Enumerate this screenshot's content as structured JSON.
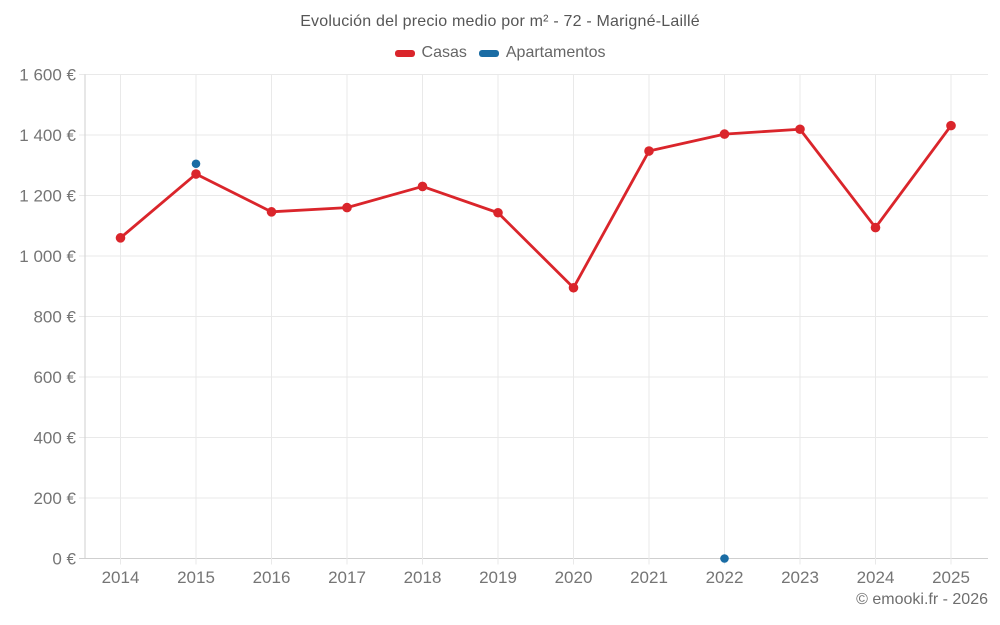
{
  "header": {
    "title": "Evolución del precio medio por m² - 72 - Marigné-Laillé"
  },
  "legend": {
    "items": [
      {
        "label": "Casas",
        "color": "#da252b"
      },
      {
        "label": "Apartamentos",
        "color": "#1a6ca4"
      }
    ]
  },
  "footer": {
    "credit": "© emooki.fr - 2026"
  },
  "chart_data": {
    "type": "line",
    "title": "Evolución del precio medio por m² - 72 - Marigné-Laillé",
    "x": [
      "2014",
      "2015",
      "2016",
      "2017",
      "2018",
      "2019",
      "2020",
      "2021",
      "2022",
      "2023",
      "2024",
      "2025"
    ],
    "series": [
      {
        "name": "Casas",
        "color": "#da252b",
        "line_width": 2.8,
        "marker_radius": 4.8,
        "values": [
          1060,
          1271,
          1146,
          1160,
          1230,
          1143,
          895,
          1347,
          1403,
          1419,
          1094,
          1431
        ]
      },
      {
        "name": "Apartamentos",
        "color": "#1a6ca4",
        "line_width": 0,
        "marker_radius": 4.3,
        "values": [
          null,
          1305,
          null,
          null,
          null,
          null,
          null,
          null,
          0,
          null,
          null,
          null
        ]
      }
    ],
    "ylim": [
      0,
      1600
    ],
    "yticks": [
      {
        "value": 0,
        "label": "0 €"
      },
      {
        "value": 200,
        "label": "200 €"
      },
      {
        "value": 400,
        "label": "400 €"
      },
      {
        "value": 600,
        "label": "600 €"
      },
      {
        "value": 800,
        "label": "800 €"
      },
      {
        "value": 1000,
        "label": "1 000 €"
      },
      {
        "value": 1200,
        "label": "1 200 €"
      },
      {
        "value": 1400,
        "label": "1 400 €"
      },
      {
        "value": 1600,
        "label": "1 600 €"
      }
    ],
    "currency": "€",
    "grid": true,
    "legend_position": "top",
    "grid_color": "#e9e9e9",
    "axis_color": "#cfcfcf",
    "tick_label_color": "#757575"
  }
}
